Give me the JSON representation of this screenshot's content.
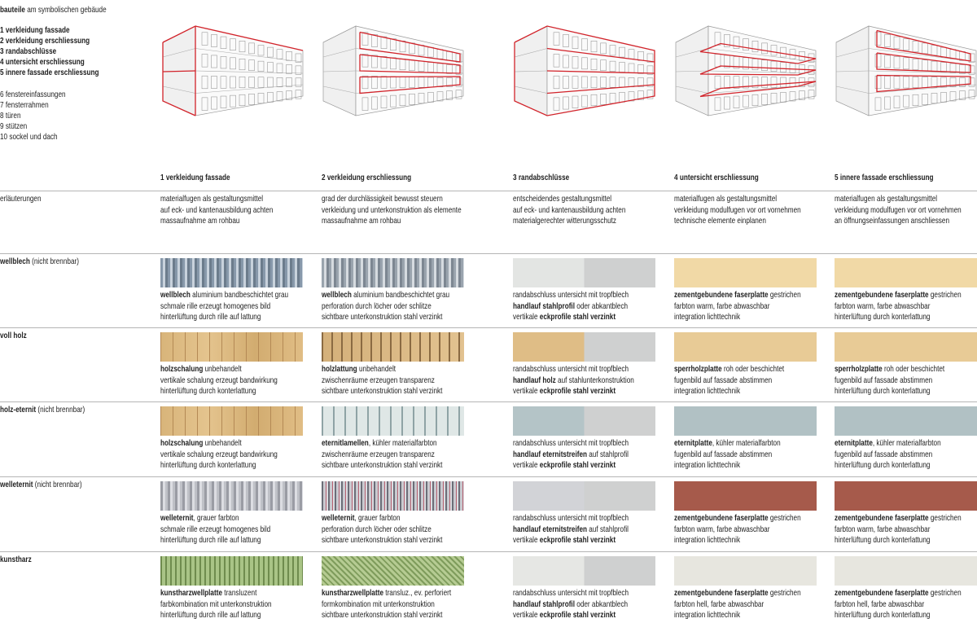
{
  "legend": {
    "title": [
      {
        "bold": "bauteile"
      },
      " am symbolischen gebäude"
    ],
    "primary": [
      "1 verkleidung fassade",
      "2 verkleidung erschliessung",
      "3 randabschlüsse",
      "4 untersicht erschliessung",
      "5 innere fassade erschliessung"
    ],
    "secondary": [
      "6 fenstereinfassungen",
      "7 fensterrahmen",
      "8 türen",
      "9 stützen",
      "10 sockel und dach"
    ]
  },
  "columns": [
    "1 verkleidung fassade",
    "2 verkleidung erschliessung",
    "3 randabschlüsse",
    "4 untersicht erschliessung",
    "5 innere fassade erschliessung"
  ],
  "notes": {
    "label": "erläuterungen",
    "cells": [
      [
        "materialfugen als gestaltungsmittel",
        "auf eck- und kantenausbildung achten",
        "massaufnahme am rohbau"
      ],
      [
        "grad der durchlässigkeit bewusst steuern",
        "verkleidung und unterkonstruktion als elemente",
        "massaufnahme am rohbau"
      ],
      [
        "entscheidendes gestaltungsmittel",
        "auf eck- und kantenausbildung achten",
        "materialgerechter witterungsschutz"
      ],
      [
        "materialfugen als gestaltungsmittel",
        "verkleidung modulfugen vor ort vornehmen",
        "technische elemente einplanen"
      ],
      [
        "materialfugen als gestaltungsmittel",
        "verkleidung modulfugen vor ort vornehmen",
        "an öffnungseinfassungen anschliessen"
      ]
    ]
  },
  "rows": [
    {
      "label": [
        {
          "bold": "wellblech"
        },
        " (nicht brennbar)"
      ],
      "cells": [
        [
          [
            {
              "bold": "wellblech"
            },
            " aluminium bandbeschichtet grau"
          ],
          [
            "schmale rille erzeugt homogenes bild"
          ],
          [
            "hinterlüftung durch rille auf lattung"
          ]
        ],
        [
          [
            {
              "bold": "wellblech"
            },
            " aluminium bandbeschichtet grau"
          ],
          [
            "perforation durch löcher oder schlitze"
          ],
          [
            "sichtbare unterkonstruktion stahl verzinkt"
          ]
        ],
        [
          [
            "randabschluss untersicht mit tropfblech"
          ],
          [
            {
              "bold": "handlauf stahlprofil"
            },
            " oder abkantblech"
          ],
          [
            "vertikale ",
            {
              "bold": "eckprofile stahl verzinkt"
            }
          ]
        ],
        [
          [
            {
              "bold": "zementgebundene faserplatte"
            },
            " gestrichen"
          ],
          [
            "farbton warm, farbe abwaschbar"
          ],
          [
            "integration lichttechnik"
          ]
        ],
        [
          [
            {
              "bold": "zementgebundene faserplatte"
            },
            " gestrichen"
          ],
          [
            "farbton warm, farbe abwaschbar"
          ],
          [
            "hinterlüftung durch konterlattung"
          ]
        ]
      ]
    },
    {
      "label": [
        {
          "bold": "voll holz"
        }
      ],
      "cells": [
        [
          [
            {
              "bold": "holzschalung"
            },
            " unbehandelt"
          ],
          [
            "vertikale schalung erzeugt bandwirkung"
          ],
          [
            "hinterlüftung durch konterlattung"
          ]
        ],
        [
          [
            {
              "bold": "holzlattung"
            },
            " unbehandelt"
          ],
          [
            "zwischenräume erzeugen transparenz"
          ],
          [
            "sichtbare unterkonstruktion stahl verzinkt"
          ]
        ],
        [
          [
            "randabschluss untersicht mit tropfblech"
          ],
          [
            {
              "bold": "handlauf holz"
            },
            " auf stahlunterkonstruktion"
          ],
          [
            "vertikale ",
            {
              "bold": "eckprofile stahl verzinkt"
            }
          ]
        ],
        [
          [
            {
              "bold": "sperrholzplatte"
            },
            " roh oder beschichtet"
          ],
          [
            "fugenbild auf fassade abstimmen"
          ],
          [
            "integration lichttechnik"
          ]
        ],
        [
          [
            {
              "bold": "sperrholzplatte"
            },
            " roh oder beschichtet"
          ],
          [
            "fugenbild auf fassade abstimmen"
          ],
          [
            "hinterlüftung durch konterlattung"
          ]
        ]
      ]
    },
    {
      "label": [
        {
          "bold": "holz-eternit"
        },
        " (nicht brennbar)"
      ],
      "cells": [
        [
          [
            {
              "bold": "holzschalung"
            },
            " unbehandelt"
          ],
          [
            "vertikale schalung erzeugt bandwirkung"
          ],
          [
            "hinterlüftung durch konterlattung"
          ]
        ],
        [
          [
            {
              "bold": "eternitlamellen"
            },
            ", kühler materialfarbton"
          ],
          [
            "zwischenräume erzeugen transparenz"
          ],
          [
            "sichtbare unterkonstruktion stahl verzinkt"
          ]
        ],
        [
          [
            "randabschluss untersicht mit tropfblech"
          ],
          [
            {
              "bold": "handlauf eternitstreifen"
            },
            " auf stahlprofil"
          ],
          [
            "vertikale ",
            {
              "bold": "eckprofile stahl verzinkt"
            }
          ]
        ],
        [
          [
            {
              "bold": "eternitplatte"
            },
            ", kühler materialfarbton"
          ],
          [
            "fugenbild auf fassade abstimmen"
          ],
          [
            "integration lichttechnik"
          ]
        ],
        [
          [
            {
              "bold": "eternitplatte"
            },
            ", kühler materialfarbton"
          ],
          [
            "fugenbild auf fassade abstimmen"
          ],
          [
            "hinterlüftung durch konterlattung"
          ]
        ]
      ]
    },
    {
      "label": [
        {
          "bold": "welleternit"
        },
        " (nicht brennbar)"
      ],
      "cells": [
        [
          [
            {
              "bold": "welleternit"
            },
            ", grauer farbton"
          ],
          [
            "schmale rille erzeugt homogenes bild"
          ],
          [
            "hinterlüftung durch rille auf lattung"
          ]
        ],
        [
          [
            {
              "bold": "welleternit"
            },
            ", grauer farbton"
          ],
          [
            "perforation durch löcher oder schlitze"
          ],
          [
            "sichtbare unterkonstruktion stahl verzinkt"
          ]
        ],
        [
          [
            "randabschluss untersicht mit tropfblech"
          ],
          [
            {
              "bold": "handlauf eternitstreifen"
            },
            " auf stahlprofil"
          ],
          [
            "vertikale ",
            {
              "bold": "eckprofile stahl verzinkt"
            }
          ]
        ],
        [
          [
            {
              "bold": "zementgebundene faserplatte"
            },
            " gestrichen"
          ],
          [
            "farbton warm, farbe abwaschbar"
          ],
          [
            "integration lichttechnik"
          ]
        ],
        [
          [
            {
              "bold": "zementgebundene faserplatte"
            },
            " gestrichen"
          ],
          [
            "farbton warm, farbe abwaschbar"
          ],
          [
            "hinterlüftung durch konterlattung"
          ]
        ]
      ]
    },
    {
      "label": [
        {
          "bold": "kunstharz"
        }
      ],
      "cells": [
        [
          [
            {
              "bold": "kunstharzwellplatte"
            },
            " transluzent"
          ],
          [
            "farbkombination mit unterkonstruktion"
          ],
          [
            "hinterlüftung durch rille auf lattung"
          ]
        ],
        [
          [
            {
              "bold": "kunstharzwellplatte"
            },
            " transluz., ev. perforiert"
          ],
          [
            "formkombination mit unterkonstruktion"
          ],
          [
            "sichtbare unterkonstruktion stahl verzinkt"
          ]
        ],
        [
          [
            "randabschluss untersicht mit tropfblech"
          ],
          [
            {
              "bold": "handlauf stahlprofil"
            },
            " oder abkantblech"
          ],
          [
            "vertikale ",
            {
              "bold": "eckprofile stahl verzinkt"
            }
          ]
        ],
        [
          [
            {
              "bold": "zementgebundene faserplatte"
            },
            " gestrichen"
          ],
          [
            "farbton hell, farbe abwaschbar"
          ],
          [
            "integration lichttechnik"
          ]
        ],
        [
          [
            {
              "bold": "zementgebundene faserplatte"
            },
            " gestrichen"
          ],
          [
            "farbton hell, farbe abwaschbar"
          ],
          [
            "hinterlüftung durch konterlattung"
          ]
        ]
      ]
    }
  ]
}
